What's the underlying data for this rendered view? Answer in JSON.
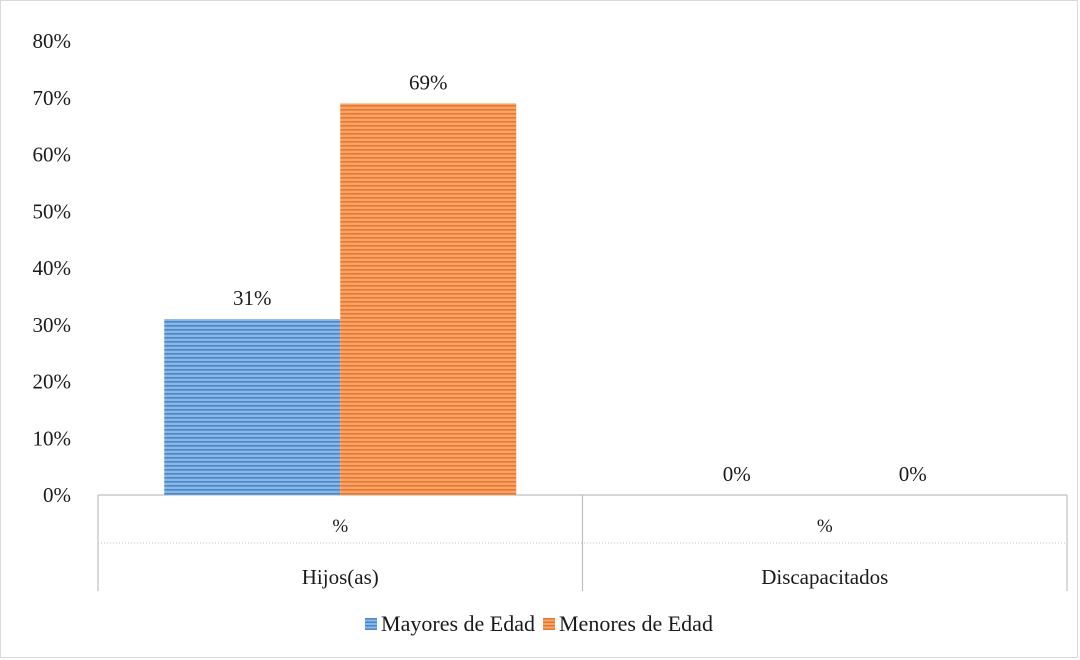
{
  "chart_data": {
    "type": "bar",
    "group_labels": [
      "Hijos(as)",
      "Discapacitados"
    ],
    "sub_labels": [
      "%",
      "%"
    ],
    "series": [
      {
        "name": "Mayores de Edad",
        "values": [
          31,
          0
        ],
        "value_labels": [
          "31%",
          "0%"
        ],
        "color": "#5b9bd5"
      },
      {
        "name": "Menores de Edad",
        "values": [
          69,
          0
        ],
        "value_labels": [
          "69%",
          "0%"
        ],
        "color": "#ed7d31"
      }
    ],
    "y_ticks": [
      "0%",
      "10%",
      "20%",
      "30%",
      "40%",
      "50%",
      "60%",
      "70%",
      "80%"
    ],
    "ylim": [
      0,
      80
    ],
    "grid": false,
    "legend_position": "bottom"
  }
}
